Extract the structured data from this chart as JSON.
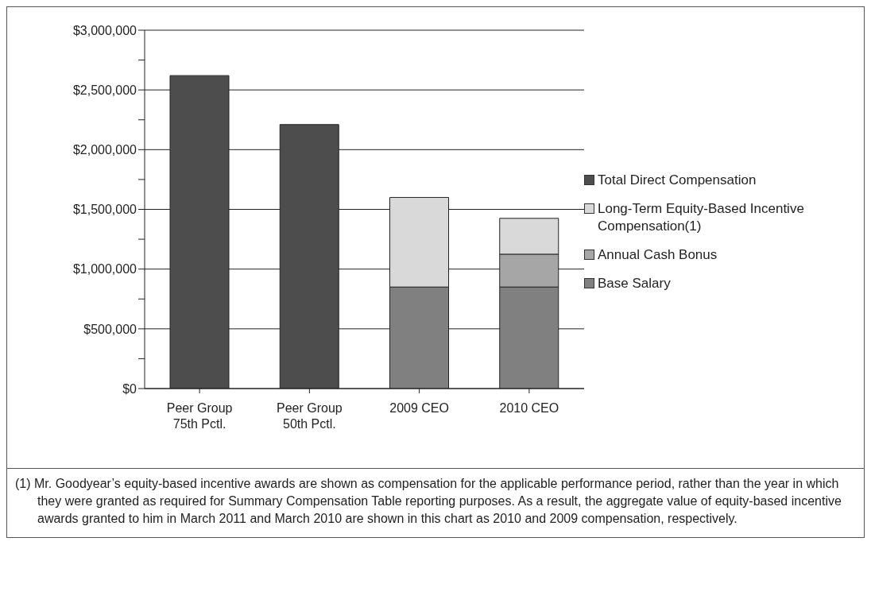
{
  "chart_data": {
    "type": "bar",
    "stacked": true,
    "categories": [
      "Peer Group 75th Pctl.",
      "Peer Group 50th Pctl.",
      "2009 CEO",
      "2010 CEO"
    ],
    "series": [
      {
        "name": "Base Salary",
        "color": "#808080",
        "values": [
          null,
          null,
          850000,
          850000
        ]
      },
      {
        "name": "Annual Cash Bonus",
        "color": "#a6a6a6",
        "values": [
          null,
          null,
          null,
          275000
        ]
      },
      {
        "name": "Long-Term Equity-Based Incentive Compensation(1)",
        "color": "#d9d9d9",
        "values": [
          null,
          null,
          750000,
          300000
        ]
      },
      {
        "name": "Total Direct Compensation",
        "color": "#4d4d4d",
        "values": [
          2620000,
          2210000,
          null,
          null
        ]
      }
    ],
    "ylim": [
      0,
      3000000
    ],
    "yticks": [
      {
        "value": 0,
        "label": "$0"
      },
      {
        "value": 250000,
        "label": null
      },
      {
        "value": 500000,
        "label": "$500,000"
      },
      {
        "value": 750000,
        "label": null
      },
      {
        "value": 1000000,
        "label": "$1,000,000"
      },
      {
        "value": 1250000,
        "label": null
      },
      {
        "value": 1500000,
        "label": "$1,500,000"
      },
      {
        "value": 1750000,
        "label": null
      },
      {
        "value": 2000000,
        "label": "$2,000,000"
      },
      {
        "value": 2250000,
        "label": null
      },
      {
        "value": 2500000,
        "label": "$2,500,000"
      },
      {
        "value": 2750000,
        "label": null
      },
      {
        "value": 3000000,
        "label": "$3,000,000"
      }
    ],
    "grid": "y",
    "legend": "right",
    "annotations": [
      "(1) Mr. Goodyear’s equity-based incentive awards are shown as compensation for the applicable performance period, rather than the year in which they were granted as required for Summary Compensation Table reporting purposes. As a result, the aggregate value of equity-based incentive awards granted to him in March 2011 and March 2010 are shown in this chart as 2010 and 2009 compensation, respectively."
    ]
  }
}
